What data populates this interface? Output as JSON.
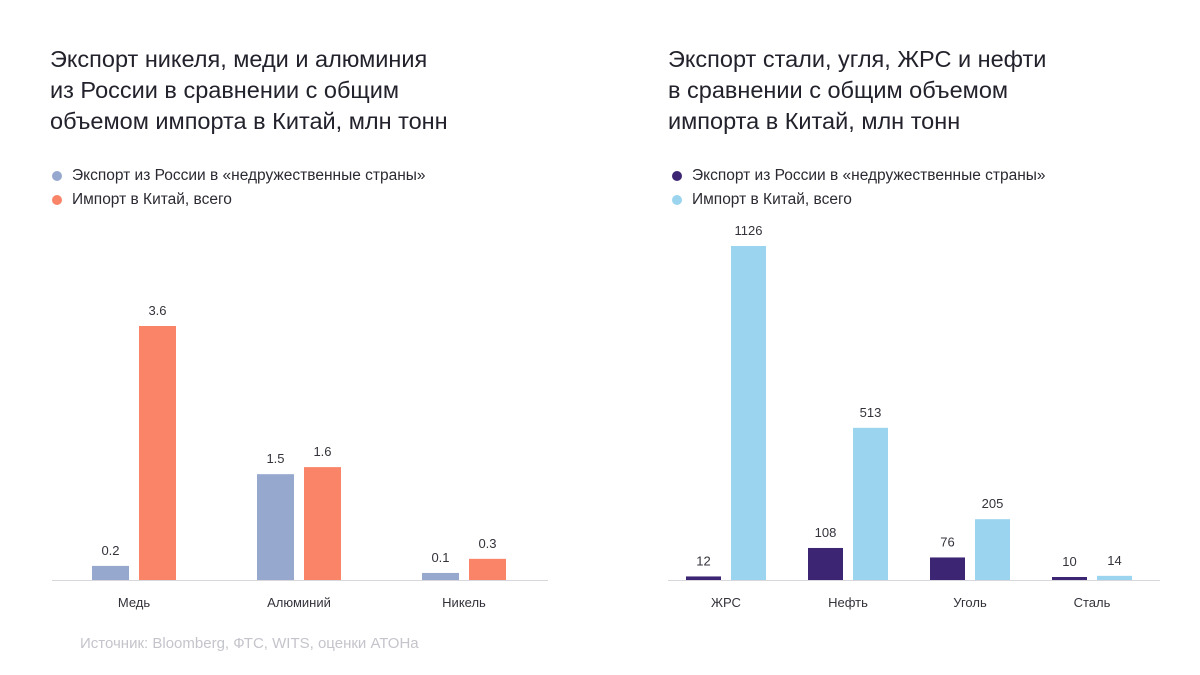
{
  "charts": {
    "left": {
      "title_lines": [
        "Экспорт никеля, меди и алюминия",
        "из России в сравнении с общим",
        "объемом импорта в Китай, млн тонн"
      ]
    },
    "right": {
      "title_lines": [
        "Экспорт стали, угля, ЖРС и нефти",
        "в сравнении с общим объемом",
        "импорта в Китай, млн тонн"
      ]
    }
  },
  "source": "Источник: Bloomberg, ФТС, WITS, оценки АТОНа",
  "chart_data": [
    {
      "type": "bar",
      "title": "Экспорт никеля, меди и алюминия из России в сравнении с общим объемом импорта в Китай, млн тонн",
      "categories": [
        "Медь",
        "Алюминий",
        "Никель"
      ],
      "series": [
        {
          "name": "Экспорт из России в «недружественные страны»",
          "values": [
            0.2,
            1.5,
            0.1
          ],
          "color": "#97a8cf"
        },
        {
          "name": "Импорт в Китай, всего",
          "values": [
            3.6,
            1.6,
            0.3
          ],
          "color": "#fa8468"
        }
      ],
      "value_labels": [
        [
          "0.2",
          "1.5",
          "0.1"
        ],
        [
          "3.6",
          "1.6",
          "0.3"
        ]
      ],
      "ylim": [
        0,
        3.6
      ],
      "legend_position": "top-left",
      "grid": false
    },
    {
      "type": "bar",
      "title": "Экспорт стали, угля, ЖРС и нефти в сравнении с общим объемом импорта в Китай, млн тонн",
      "categories": [
        "ЖРС",
        "Нефть",
        "Уголь",
        "Сталь"
      ],
      "series": [
        {
          "name": "Экспорт из России в «недружественные страны»",
          "values": [
            12,
            108,
            76,
            10
          ],
          "color": "#3c2573"
        },
        {
          "name": "Импорт в Китай, всего",
          "values": [
            1126,
            513,
            205,
            14
          ],
          "color": "#9ad4ee"
        }
      ],
      "value_labels": [
        [
          "12",
          "108",
          "76",
          "10"
        ],
        [
          "1126",
          "513",
          "205",
          "14"
        ]
      ],
      "ylim": [
        0,
        1126
      ],
      "legend_position": "top-left",
      "grid": false
    }
  ]
}
